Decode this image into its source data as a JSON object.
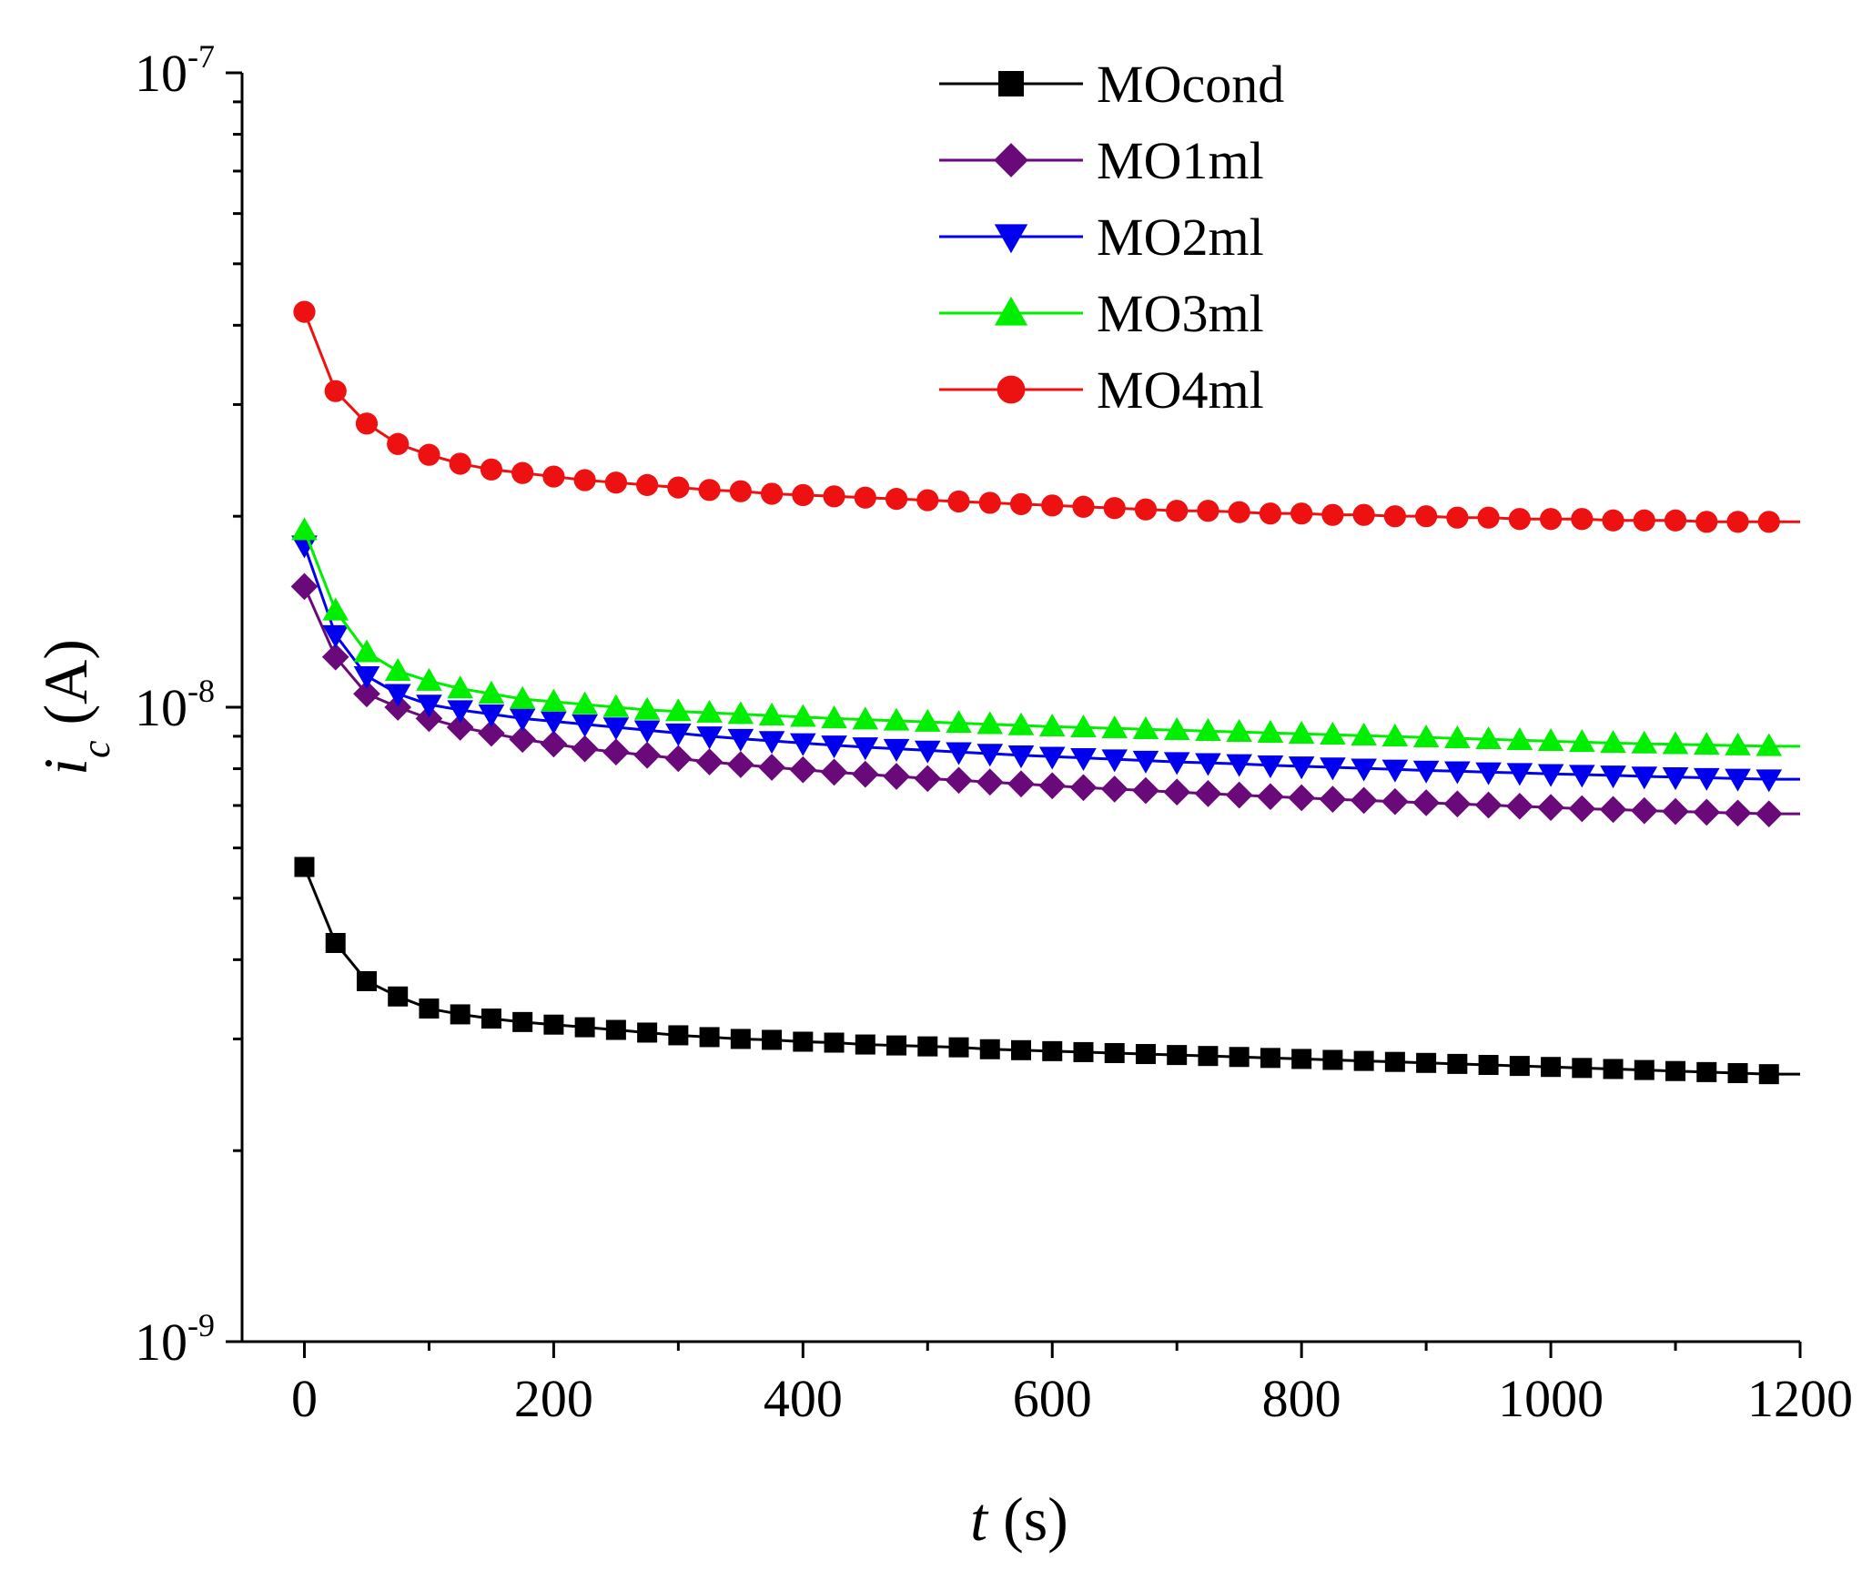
{
  "chart_data": {
    "type": "line",
    "title": "",
    "xlabel": "t (s)",
    "xlabel_var": "t",
    "xlabel_unit": " (s)",
    "ylabel": "i_c (A)",
    "ylabel_var": "i",
    "ylabel_sub": "c",
    "ylabel_unit": " (A)",
    "xlim": [
      -50,
      1200
    ],
    "ylim": [
      1e-09,
      1e-07
    ],
    "yscale": "log",
    "grid": false,
    "legend_position": "top-right",
    "x_ticks": [
      {
        "value": 0,
        "label": "0"
      },
      {
        "value": 200,
        "label": "200"
      },
      {
        "value": 400,
        "label": "400"
      },
      {
        "value": 600,
        "label": "600"
      },
      {
        "value": 800,
        "label": "800"
      },
      {
        "value": 1000,
        "label": "1000"
      },
      {
        "value": 1200,
        "label": "1200"
      }
    ],
    "y_ticks": [
      {
        "value": 1e-09,
        "base": "10",
        "exp": "-9"
      },
      {
        "value": 1e-08,
        "base": "10",
        "exp": "-8"
      },
      {
        "value": 1e-07,
        "base": "10",
        "exp": "-7"
      }
    ],
    "x": [
      0,
      25,
      50,
      75,
      100,
      125,
      150,
      175,
      200,
      225,
      250,
      275,
      300,
      325,
      350,
      375,
      400,
      425,
      450,
      475,
      500,
      525,
      550,
      575,
      600,
      625,
      650,
      675,
      700,
      725,
      750,
      775,
      800,
      825,
      850,
      875,
      900,
      925,
      950,
      975,
      1000,
      1025,
      1050,
      1075,
      1100,
      1125,
      1150,
      1175
    ],
    "series": [
      {
        "name": "MOcond",
        "color": "#000000",
        "marker": "square",
        "values": [
          5.6e-09,
          4.25e-09,
          3.7e-09,
          3.5e-09,
          3.35e-09,
          3.28e-09,
          3.23e-09,
          3.19e-09,
          3.16e-09,
          3.13e-09,
          3.1e-09,
          3.07e-09,
          3.04e-09,
          3.02e-09,
          3e-09,
          2.99e-09,
          2.97e-09,
          2.96e-09,
          2.94e-09,
          2.93e-09,
          2.92e-09,
          2.91e-09,
          2.89e-09,
          2.88e-09,
          2.87e-09,
          2.86e-09,
          2.85e-09,
          2.84e-09,
          2.83e-09,
          2.82e-09,
          2.81e-09,
          2.8e-09,
          2.79e-09,
          2.78e-09,
          2.77e-09,
          2.76e-09,
          2.75e-09,
          2.74e-09,
          2.73e-09,
          2.72e-09,
          2.71e-09,
          2.7e-09,
          2.69e-09,
          2.68e-09,
          2.67e-09,
          2.66e-09,
          2.65e-09,
          2.64e-09
        ]
      },
      {
        "name": "MO1ml",
        "color": "#6a0a7a",
        "marker": "diamond",
        "values": [
          1.55e-08,
          1.2e-08,
          1.05e-08,
          1e-08,
          9.6e-09,
          9.3e-09,
          9.1e-09,
          8.9e-09,
          8.75e-09,
          8.6e-09,
          8.5e-09,
          8.4e-09,
          8.3e-09,
          8.2e-09,
          8.12e-09,
          8.04e-09,
          7.97e-09,
          7.9e-09,
          7.84e-09,
          7.78e-09,
          7.72e-09,
          7.67e-09,
          7.62e-09,
          7.57e-09,
          7.52e-09,
          7.47e-09,
          7.43e-09,
          7.39e-09,
          7.35e-09,
          7.31e-09,
          7.27e-09,
          7.23e-09,
          7.2e-09,
          7.16e-09,
          7.13e-09,
          7.1e-09,
          7.07e-09,
          7.04e-09,
          7.01e-09,
          6.98e-09,
          6.95e-09,
          6.92e-09,
          6.9e-09,
          6.87e-09,
          6.85e-09,
          6.83e-09,
          6.81e-09,
          6.79e-09
        ]
      },
      {
        "name": "MO2ml",
        "color": "#0000ee",
        "marker": "triangle-down",
        "values": [
          1.8e-08,
          1.3e-08,
          1.12e-08,
          1.05e-08,
          1.01e-08,
          9.9e-09,
          9.75e-09,
          9.6e-09,
          9.5e-09,
          9.4e-09,
          9.3e-09,
          9.2e-09,
          9.1e-09,
          9e-09,
          8.92e-09,
          8.85e-09,
          8.78e-09,
          8.71e-09,
          8.65e-09,
          8.6e-09,
          8.55e-09,
          8.5e-09,
          8.45e-09,
          8.4e-09,
          8.36e-09,
          8.32e-09,
          8.28e-09,
          8.24e-09,
          8.2e-09,
          8.17e-09,
          8.14e-09,
          8.1e-09,
          8.07e-09,
          8.04e-09,
          8.01e-09,
          7.98e-09,
          7.95e-09,
          7.93e-09,
          7.9e-09,
          7.88e-09,
          7.85e-09,
          7.83e-09,
          7.81e-09,
          7.78e-09,
          7.76e-09,
          7.74e-09,
          7.72e-09,
          7.7e-09
        ]
      },
      {
        "name": "MO3ml",
        "color": "#00ee00",
        "marker": "triangle-up",
        "values": [
          1.9e-08,
          1.42e-08,
          1.22e-08,
          1.14e-08,
          1.1e-08,
          1.07e-08,
          1.05e-08,
          1.03e-08,
          1.02e-08,
          1.01e-08,
          1e-08,
          9.9e-09,
          9.85e-09,
          9.8e-09,
          9.75e-09,
          9.7e-09,
          9.65e-09,
          9.6e-09,
          9.56e-09,
          9.52e-09,
          9.48e-09,
          9.44e-09,
          9.4e-09,
          9.36e-09,
          9.32e-09,
          9.29e-09,
          9.26e-09,
          9.23e-09,
          9.2e-09,
          9.17e-09,
          9.14e-09,
          9.11e-09,
          9.08e-09,
          9.05e-09,
          9.02e-09,
          8.99e-09,
          8.96e-09,
          8.93e-09,
          8.9e-09,
          8.87e-09,
          8.84e-09,
          8.81e-09,
          8.78e-09,
          8.76e-09,
          8.74e-09,
          8.72e-09,
          8.7e-09,
          8.68e-09
        ]
      },
      {
        "name": "MO4ml",
        "color": "#ee1111",
        "marker": "circle",
        "values": [
          4.2e-08,
          3.15e-08,
          2.8e-08,
          2.6e-08,
          2.5e-08,
          2.42e-08,
          2.37e-08,
          2.34e-08,
          2.31e-08,
          2.28e-08,
          2.26e-08,
          2.24e-08,
          2.22e-08,
          2.2e-08,
          2.19e-08,
          2.17e-08,
          2.16e-08,
          2.15e-08,
          2.14e-08,
          2.13e-08,
          2.12e-08,
          2.11e-08,
          2.1e-08,
          2.09e-08,
          2.08e-08,
          2.07e-08,
          2.06e-08,
          2.05e-08,
          2.04e-08,
          2.04e-08,
          2.03e-08,
          2.02e-08,
          2.02e-08,
          2.01e-08,
          2.01e-08,
          2e-08,
          2e-08,
          1.99e-08,
          1.99e-08,
          1.98e-08,
          1.98e-08,
          1.98e-08,
          1.97e-08,
          1.97e-08,
          1.97e-08,
          1.96e-08,
          1.96e-08,
          1.96e-08
        ]
      }
    ]
  }
}
